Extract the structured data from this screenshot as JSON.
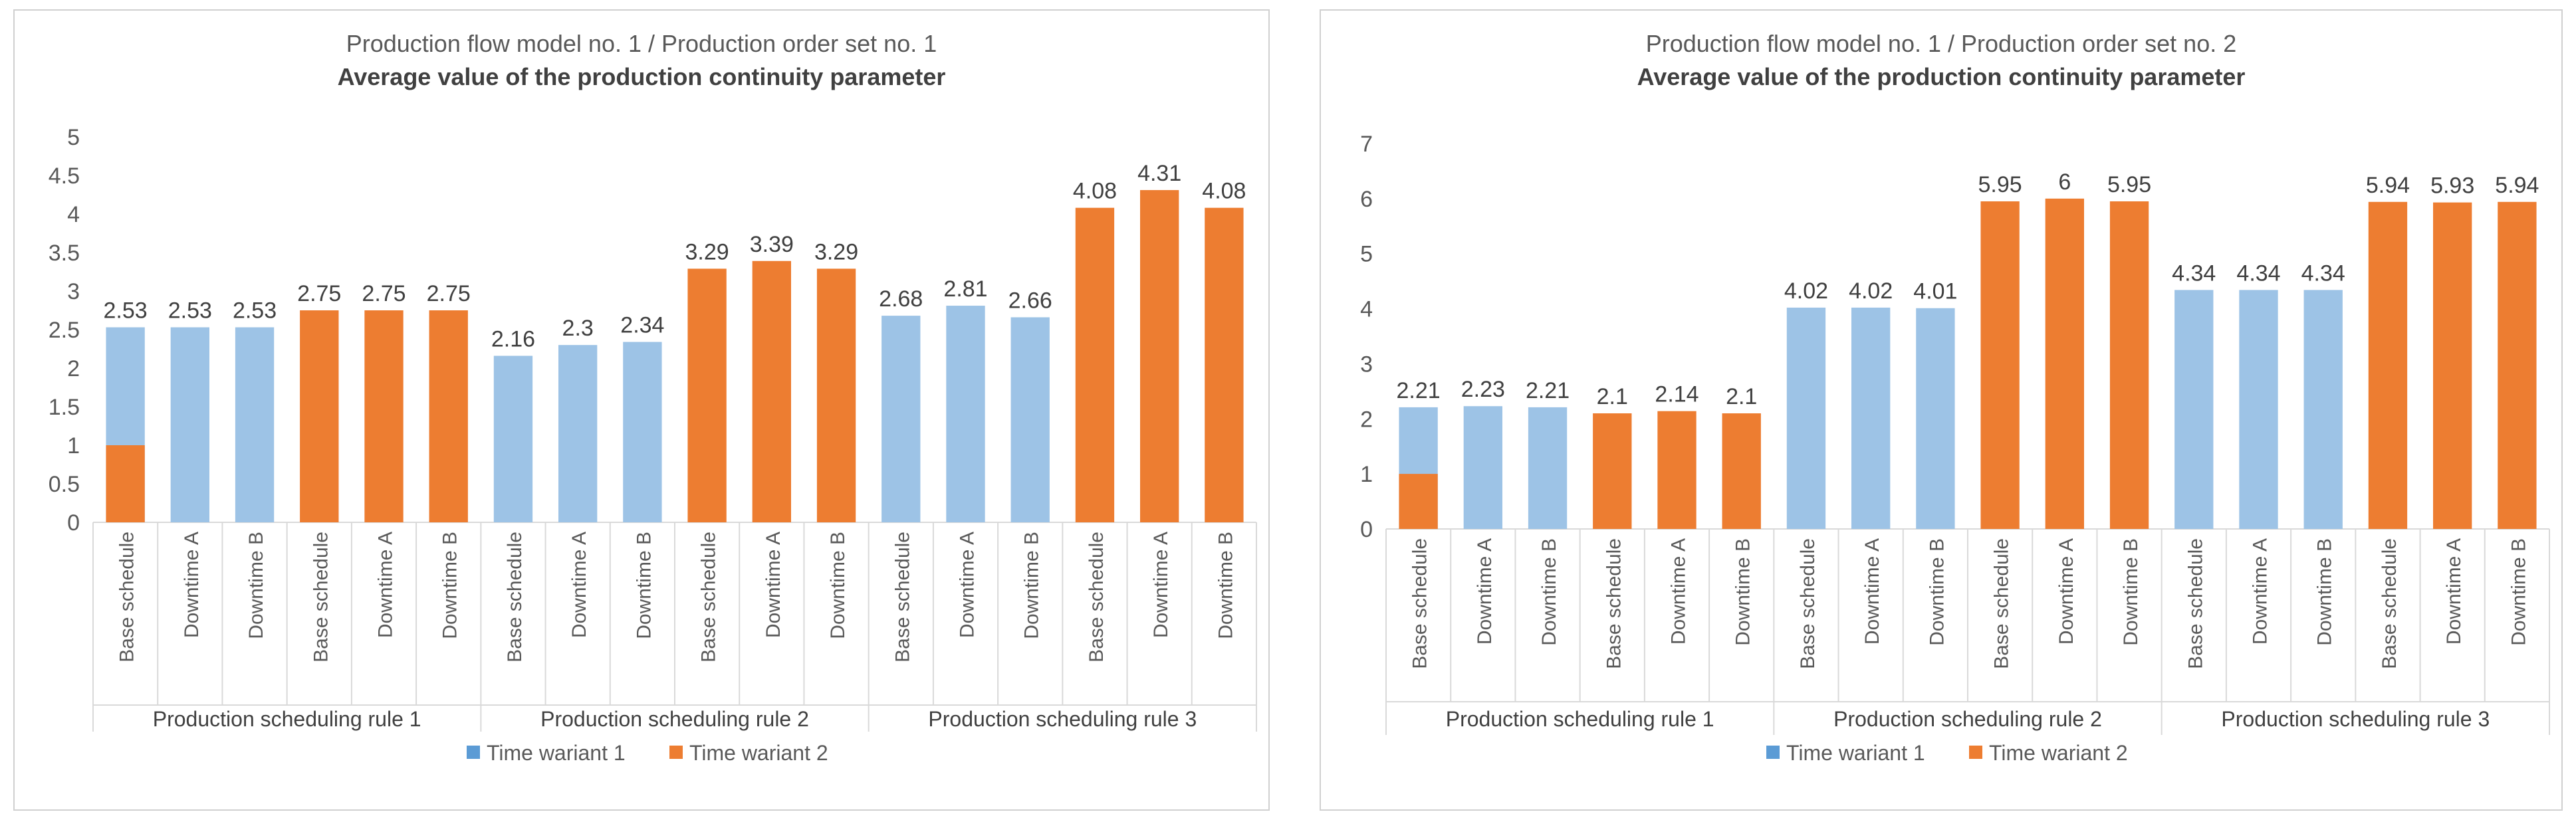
{
  "chart_data": [
    {
      "type": "bar",
      "title": "Production flow model no. 1 / Production order set no. 1",
      "subtitle": "Average value of the production continuity parameter",
      "ylim": [
        0,
        5
      ],
      "ytick_labels": [
        "0",
        "0.5",
        "1",
        "1.5",
        "2",
        "2.5",
        "3",
        "3.5",
        "4",
        "4.5",
        "5"
      ],
      "grid": false,
      "legend_position": "bottom",
      "categories": [
        "Base schedule",
        "Downtime A",
        "Downtime B",
        "Base schedule",
        "Downtime A",
        "Downtime B",
        "Base schedule",
        "Downtime A",
        "Downtime B",
        "Base schedule",
        "Downtime A",
        "Downtime B",
        "Base schedule",
        "Downtime A",
        "Downtime B",
        "Base schedule",
        "Downtime A",
        "Downtime B"
      ],
      "groups": [
        "Production scheduling rule 1",
        "Production scheduling rule 2",
        "Production scheduling rule 3"
      ],
      "values": [
        2.53,
        2.53,
        2.53,
        2.75,
        2.75,
        2.75,
        2.16,
        2.3,
        2.34,
        3.29,
        3.39,
        3.29,
        2.68,
        2.81,
        2.66,
        4.08,
        4.31,
        4.08
      ],
      "value_labels": [
        "2.53",
        "2.53",
        "2.53",
        "2.75",
        "2.75",
        "2.75",
        "2.16",
        "2.3",
        "2.34",
        "3.29",
        "3.39",
        "3.29",
        "2.68",
        "2.81",
        "2.66",
        "4.08",
        "4.31",
        "4.08"
      ],
      "series_index": [
        0,
        0,
        0,
        1,
        1,
        1,
        0,
        0,
        0,
        1,
        1,
        1,
        0,
        0,
        0,
        1,
        1,
        1
      ],
      "overlay": {
        "bar_index": 0,
        "series_index": 1,
        "value": 1
      },
      "legend": [
        {
          "name": "Time wariant 1",
          "color": "#9dc3e6"
        },
        {
          "name": "Time wariant 2",
          "color": "#ed7d31"
        }
      ],
      "legend_swatch_colors": [
        "#5b9bd5",
        "#ed7d31"
      ]
    },
    {
      "type": "bar",
      "title": "Production flow model no. 1 / Production order set no. 2",
      "subtitle": "Average value of the production continuity parameter",
      "ylim": [
        0,
        7
      ],
      "ytick_labels": [
        "0",
        "1",
        "2",
        "3",
        "4",
        "5",
        "6",
        "7"
      ],
      "grid": false,
      "legend_position": "bottom",
      "categories": [
        "Base schedule",
        "Downtime A",
        "Downtime B",
        "Base schedule",
        "Downtime A",
        "Downtime B",
        "Base schedule",
        "Downtime A",
        "Downtime B",
        "Base schedule",
        "Downtime A",
        "Downtime B",
        "Base schedule",
        "Downtime A",
        "Downtime B",
        "Base schedule",
        "Downtime A",
        "Downtime B"
      ],
      "groups": [
        "Production scheduling rule 1",
        "Production scheduling rule 2",
        "Production scheduling rule 3"
      ],
      "values": [
        2.21,
        2.23,
        2.21,
        2.1,
        2.14,
        2.1,
        4.02,
        4.02,
        4.01,
        5.95,
        6,
        5.95,
        4.34,
        4.34,
        4.34,
        5.94,
        5.93,
        5.94
      ],
      "value_labels": [
        "2.21",
        "2.23",
        "2.21",
        "2.1",
        "2.14",
        "2.1",
        "4.02",
        "4.02",
        "4.01",
        "5.95",
        "6",
        "5.95",
        "4.34",
        "4.34",
        "4.34",
        "5.94",
        "5.93",
        "5.94"
      ],
      "series_index": [
        0,
        0,
        0,
        1,
        1,
        1,
        0,
        0,
        0,
        1,
        1,
        1,
        0,
        0,
        0,
        1,
        1,
        1
      ],
      "overlay": {
        "bar_index": 0,
        "series_index": 1,
        "value": 1
      },
      "legend": [
        {
          "name": "Time wariant 1",
          "color": "#9dc3e6"
        },
        {
          "name": "Time wariant 2",
          "color": "#ed7d31"
        }
      ],
      "legend_swatch_colors": [
        "#5b9bd5",
        "#ed7d31"
      ]
    }
  ]
}
